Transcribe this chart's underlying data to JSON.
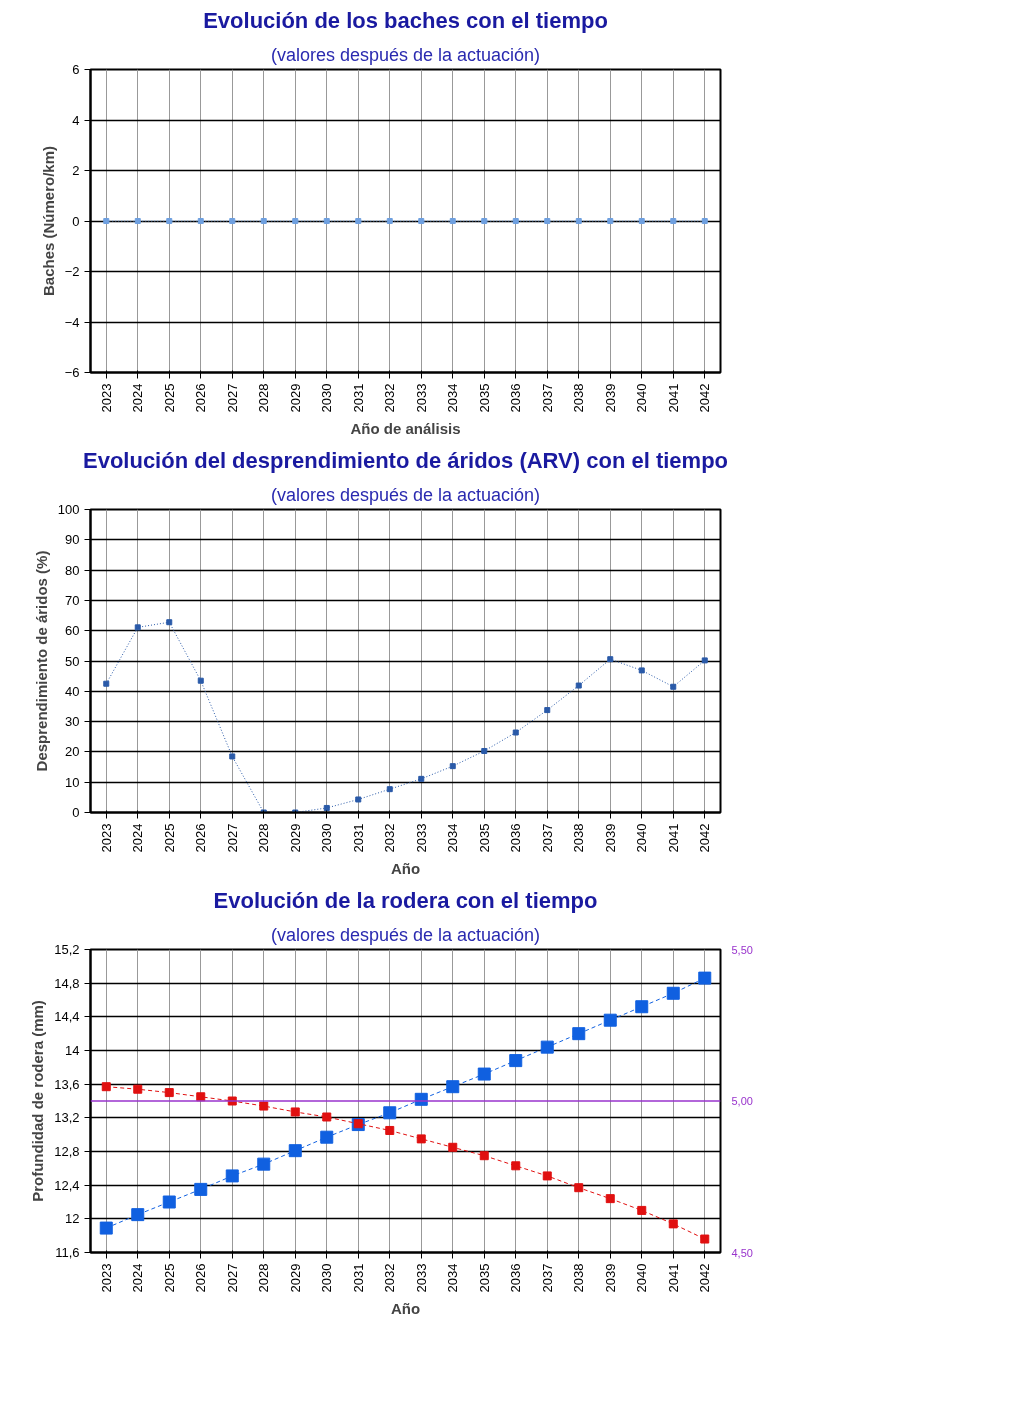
{
  "chart_data": [
    {
      "type": "line",
      "title": "Evolución de los baches con el tiempo",
      "subtitle": "(valores después de la actuación)",
      "xlabel": "Año de análisis",
      "ylabel": "Baches (Número/km)",
      "categories": [
        "2023",
        "2024",
        "2025",
        "2026",
        "2027",
        "2028",
        "2029",
        "2030",
        "2031",
        "2032",
        "2033",
        "2034",
        "2035",
        "2036",
        "2037",
        "2038",
        "2039",
        "2040",
        "2041",
        "2042"
      ],
      "series": [
        {
          "color": "#6fa0e0",
          "values": [
            0,
            0,
            0,
            0,
            0,
            0,
            0,
            0,
            0,
            0,
            0,
            0,
            0,
            0,
            0,
            0,
            0,
            0,
            0,
            0
          ]
        }
      ],
      "ylim": [
        -6,
        6
      ],
      "yticks": [
        -6,
        -4,
        -2,
        0,
        2,
        4,
        6
      ],
      "grid": true,
      "marker": "square",
      "line_style": "dotted"
    },
    {
      "type": "line",
      "title": "Evolución del desprendimiento de áridos (ARV) con el tiempo",
      "subtitle": "(valores después de la actuación)",
      "xlabel": "Año",
      "ylabel": "Desprendimiento de áridos (%)",
      "categories": [
        "2023",
        "2024",
        "2025",
        "2026",
        "2027",
        "2028",
        "2029",
        "2030",
        "2031",
        "2032",
        "2033",
        "2034",
        "2035",
        "2036",
        "2037",
        "2038",
        "2039",
        "2040",
        "2041",
        "2042"
      ],
      "series": [
        {
          "color": "#2a5aa8",
          "values": [
            42.5,
            61.1,
            62.8,
            43.5,
            18.5,
            0,
            0,
            1.5,
            4.3,
            7.7,
            11.1,
            15.3,
            20.3,
            26.4,
            33.8,
            41.9,
            50.6,
            46.9,
            41.5,
            50.2
          ]
        }
      ],
      "ylim": [
        0,
        100
      ],
      "yticks": [
        0,
        10,
        20,
        30,
        40,
        50,
        60,
        70,
        80,
        90,
        100
      ],
      "grid": true,
      "marker": "square",
      "line_style": "dotted"
    },
    {
      "type": "line",
      "title": "Evolución de la rodera con el tiempo",
      "subtitle": "(valores después de la actuación)",
      "xlabel": "Año",
      "ylabel": "Profundidad de rodera (mm)",
      "categories": [
        "2023",
        "2024",
        "2025",
        "2026",
        "2027",
        "2028",
        "2029",
        "2030",
        "2031",
        "2032",
        "2033",
        "2034",
        "2035",
        "2036",
        "2037",
        "2038",
        "2039",
        "2040",
        "2041",
        "2042"
      ],
      "series": [
        {
          "color": "#1060e0",
          "values": [
            11.89,
            12.05,
            12.2,
            12.35,
            12.51,
            12.65,
            12.81,
            12.97,
            13.12,
            13.26,
            13.42,
            13.57,
            13.72,
            13.88,
            14.04,
            14.2,
            14.36,
            14.52,
            14.68,
            14.86
          ]
        },
        {
          "color": "#e01010",
          "values": [
            13.57,
            13.54,
            13.5,
            13.45,
            13.4,
            13.34,
            13.27,
            13.21,
            13.13,
            13.05,
            12.95,
            12.85,
            12.75,
            12.63,
            12.51,
            12.37,
            12.24,
            12.1,
            11.94,
            11.76
          ]
        }
      ],
      "ylim": [
        11.6,
        15.2
      ],
      "yticks": [
        {
          "value": 11.6,
          "label": "11,6"
        },
        12,
        {
          "value": 12.4,
          "label": "12,4"
        },
        {
          "value": 12.8,
          "label": "12,8"
        },
        {
          "value": 13.2,
          "label": "13,2"
        },
        {
          "value": 13.6,
          "label": "13,6"
        },
        14,
        {
          "value": 14.4,
          "label": "14,4"
        },
        {
          "value": 14.8,
          "label": "14,8"
        },
        {
          "value": 15.2,
          "label": "15,2"
        }
      ],
      "y2lim": [
        4.5,
        5.5
      ],
      "y2ticks": [
        {
          "value": 4.5,
          "label": "4,50"
        },
        {
          "value": 5.0,
          "label": "5,00"
        },
        {
          "value": 5.5,
          "label": "5,50"
        }
      ],
      "ref_lines": [
        {
          "axis": "y2",
          "value": 5.0,
          "color": "#9933cc"
        }
      ],
      "grid": true,
      "marker": "square",
      "line_style": "dashed"
    }
  ]
}
